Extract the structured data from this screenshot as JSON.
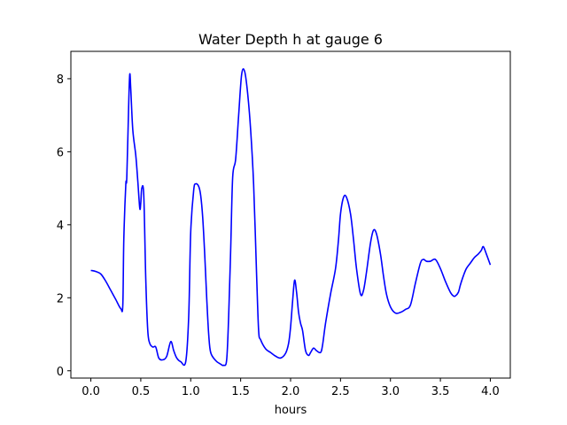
{
  "chart_data": {
    "type": "line",
    "title": "Water Depth h at gauge 6",
    "xlabel": "hours",
    "ylabel": "",
    "xlim": [
      -0.2,
      4.2
    ],
    "ylim": [
      -0.2,
      8.75
    ],
    "xticks": [
      "0.0",
      "0.5",
      "1.0",
      "1.5",
      "2.0",
      "2.5",
      "3.0",
      "3.5",
      "4.0"
    ],
    "xtick_values": [
      0.0,
      0.5,
      1.0,
      1.5,
      2.0,
      2.5,
      3.0,
      3.5,
      4.0
    ],
    "yticks": [
      "0",
      "2",
      "4",
      "6",
      "8"
    ],
    "ytick_values": [
      0,
      2,
      4,
      6,
      8
    ],
    "grid": false,
    "series": [
      {
        "color": "#0000ff",
        "x": [
          0.0,
          0.05,
          0.1,
          0.15,
          0.2,
          0.25,
          0.3,
          0.32,
          0.33,
          0.35,
          0.36,
          0.38,
          0.39,
          0.4,
          0.42,
          0.45,
          0.47,
          0.49,
          0.5,
          0.51,
          0.53,
          0.55,
          0.57,
          0.59,
          0.62,
          0.65,
          0.68,
          0.72,
          0.76,
          0.8,
          0.83,
          0.86,
          0.9,
          0.95,
          0.98,
          1.0,
          1.03,
          1.05,
          1.08,
          1.1,
          1.12,
          1.14,
          1.16,
          1.18,
          1.2,
          1.25,
          1.3,
          1.33,
          1.36,
          1.38,
          1.4,
          1.42,
          1.45,
          1.48,
          1.51,
          1.54,
          1.57,
          1.6,
          1.63,
          1.66,
          1.68,
          1.7,
          1.75,
          1.8,
          1.85,
          1.9,
          1.95,
          1.98,
          2.0,
          2.02,
          2.04,
          2.06,
          2.08,
          2.1,
          2.12,
          2.15,
          2.18,
          2.2,
          2.23,
          2.26,
          2.3,
          2.32,
          2.35,
          2.4,
          2.45,
          2.48,
          2.5,
          2.53,
          2.56,
          2.6,
          2.63,
          2.66,
          2.7,
          2.73,
          2.76,
          2.8,
          2.83,
          2.86,
          2.9,
          2.93,
          2.96,
          3.0,
          3.05,
          3.1,
          3.15,
          3.2,
          3.25,
          3.3,
          3.33,
          3.36,
          3.4,
          3.45,
          3.5,
          3.55,
          3.6,
          3.63,
          3.65,
          3.68,
          3.7,
          3.73,
          3.76,
          3.8,
          3.84,
          3.88,
          3.91,
          3.93,
          3.96,
          4.0
        ],
        "y": [
          2.75,
          2.72,
          2.65,
          2.45,
          2.2,
          1.95,
          1.7,
          1.8,
          3.6,
          5.1,
          5.3,
          7.4,
          8.13,
          7.7,
          6.6,
          5.9,
          5.2,
          4.45,
          4.6,
          5.0,
          4.8,
          2.5,
          1.1,
          0.75,
          0.65,
          0.65,
          0.35,
          0.3,
          0.4,
          0.8,
          0.55,
          0.35,
          0.25,
          0.25,
          1.5,
          3.8,
          4.95,
          5.12,
          5.05,
          4.8,
          4.2,
          3.2,
          2.0,
          1.0,
          0.5,
          0.28,
          0.18,
          0.15,
          0.3,
          1.5,
          3.3,
          5.3,
          5.8,
          7.0,
          8.12,
          8.2,
          7.6,
          6.6,
          5.1,
          2.6,
          1.1,
          0.85,
          0.6,
          0.5,
          0.4,
          0.35,
          0.48,
          0.75,
          1.2,
          1.9,
          2.48,
          2.15,
          1.6,
          1.3,
          1.1,
          0.55,
          0.42,
          0.5,
          0.62,
          0.55,
          0.5,
          0.7,
          1.3,
          2.1,
          2.8,
          3.6,
          4.3,
          4.75,
          4.75,
          4.3,
          3.6,
          2.8,
          2.1,
          2.2,
          2.7,
          3.5,
          3.85,
          3.75,
          3.2,
          2.6,
          2.1,
          1.75,
          1.58,
          1.6,
          1.68,
          1.8,
          2.4,
          2.95,
          3.05,
          3.0,
          3.0,
          3.05,
          2.8,
          2.45,
          2.15,
          2.05,
          2.05,
          2.15,
          2.35,
          2.6,
          2.8,
          2.95,
          3.1,
          3.2,
          3.3,
          3.4,
          3.2,
          2.9
        ]
      }
    ]
  }
}
